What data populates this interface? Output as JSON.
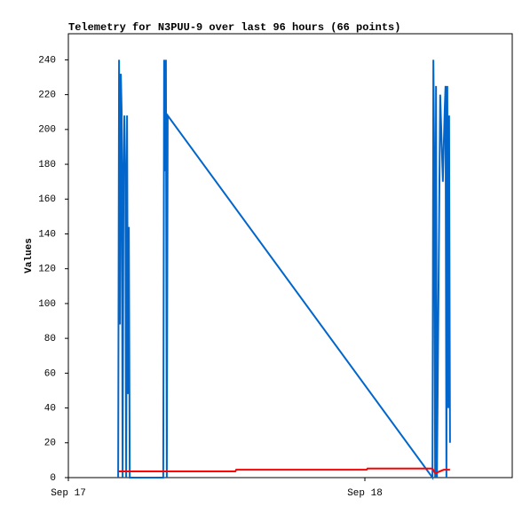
{
  "chart_data": {
    "type": "line",
    "title": "Telemetry for N3PUU-9 over last 96 hours (66 points)",
    "y_label": "Values",
    "xlim": [
      0,
      1.497
    ],
    "xticks": [
      {
        "value": 0,
        "label": "Sep 17"
      },
      {
        "value": 1,
        "label": "Sep 18"
      }
    ],
    "ylim": [
      0,
      255
    ],
    "yticks": [
      0,
      20,
      40,
      60,
      80,
      100,
      120,
      140,
      160,
      180,
      200,
      220,
      240
    ],
    "grid": false,
    "series": [
      {
        "color": "#0066cc",
        "x": [
          0.168,
          0.171,
          0.174,
          0.177,
          0.18,
          0.183,
          0.186,
          0.189,
          0.192,
          0.195,
          0.198,
          0.201,
          0.204,
          0.207,
          0.32,
          0.323,
          0.326,
          0.329,
          0.332,
          0.335,
          1.228,
          1.231,
          1.234,
          1.237,
          1.24,
          1.243,
          1.254,
          1.263,
          1.269,
          1.272,
          1.275,
          1.278,
          1.281,
          1.284,
          1.287
        ],
        "values": [
          0,
          240,
          88,
          232,
          208,
          0,
          176,
          208,
          176,
          0,
          208,
          48,
          144,
          0,
          0,
          240,
          176,
          240,
          0,
          208,
          0,
          240,
          180,
          0,
          225,
          0,
          220,
          170,
          210,
          225,
          0,
          225,
          40,
          208,
          20
        ]
      },
      {
        "color": "#ff0000",
        "x": [
          0.168,
          0.563,
          0.566,
          1.006,
          1.009,
          1.228,
          1.237,
          1.266,
          1.287
        ],
        "values": [
          3.6,
          3.6,
          4.5,
          4.5,
          5.2,
          5.2,
          2.5,
          4.5,
          4.5
        ]
      }
    ]
  }
}
